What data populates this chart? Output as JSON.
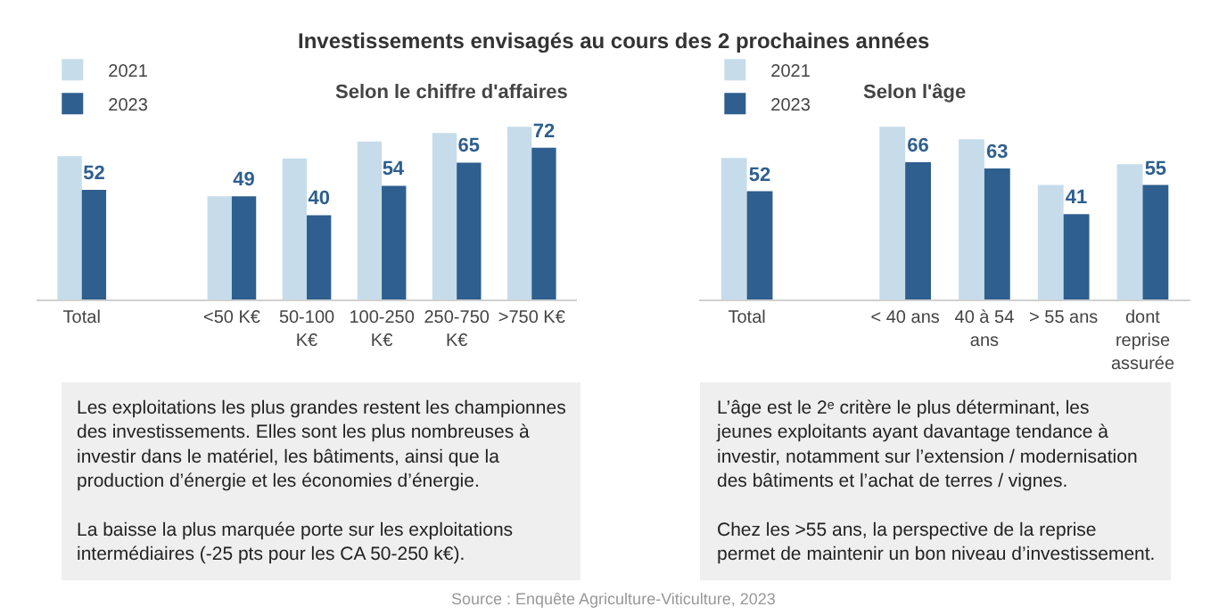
{
  "chart_data": [
    {
      "type": "bar",
      "title": "Investissements envisagés au cours des 2 prochaines années",
      "subtitle": "Selon le chiffre d'affaires",
      "categories": [
        "Total",
        null,
        "<50 K€",
        "50-100 K€",
        "100-250 K€",
        "250-750 K€",
        ">750 K€"
      ],
      "legend": "top left",
      "series": [
        {
          "name": "2021",
          "color": "#c6dcea",
          "values": [
            68,
            null,
            49,
            67,
            75,
            79,
            82
          ]
        },
        {
          "name": "2023",
          "color": "#2e5f8f",
          "values": [
            52,
            null,
            49,
            40,
            54,
            65,
            72
          ],
          "value_labels": [
            "52",
            null,
            "49",
            "40",
            "54",
            "65",
            "72"
          ]
        }
      ],
      "annotations": [
        "Les exploitations les plus grandes restent les championnes des investissements. Elles sont les plus nombreuses à investir dans le matériel, les bâtiments, ainsi que la production d’énergie et les économies d’énergie.\nLa baisse la plus marquée porte sur les exploitations intermédiaires (-25 pts pour les CA 50-250 k€)."
      ]
    },
    {
      "type": "bar",
      "subtitle": "Selon l'âge",
      "categories": [
        "Total",
        null,
        "< 40 ans",
        "40 à 54 ans",
        "> 55 ans",
        "dont reprise assurée"
      ],
      "legend": "top left",
      "series": [
        {
          "name": "2021",
          "color": "#c6dcea",
          "values": [
            68,
            null,
            83,
            77,
            55,
            65
          ]
        },
        {
          "name": "2023",
          "color": "#2e5f8f",
          "values": [
            52,
            null,
            66,
            63,
            41,
            55
          ],
          "value_labels": [
            "52",
            null,
            "66",
            "63",
            "41",
            "55"
          ]
        }
      ],
      "annotations": [
        "L’âge est le 2ᵉ critère le plus déterminant, les jeunes exploitants ayant davantage tendance à investir, notamment sur l’extension / modernisation des bâtiments et l’achat de terres / vignes.\nChez les >55 ans, la perspective de la reprise permet de maintenir un bon niveau d’investissement.",
        "Source : Enquête Agriculture-Viticulture, 2023"
      ]
    }
  ]
}
